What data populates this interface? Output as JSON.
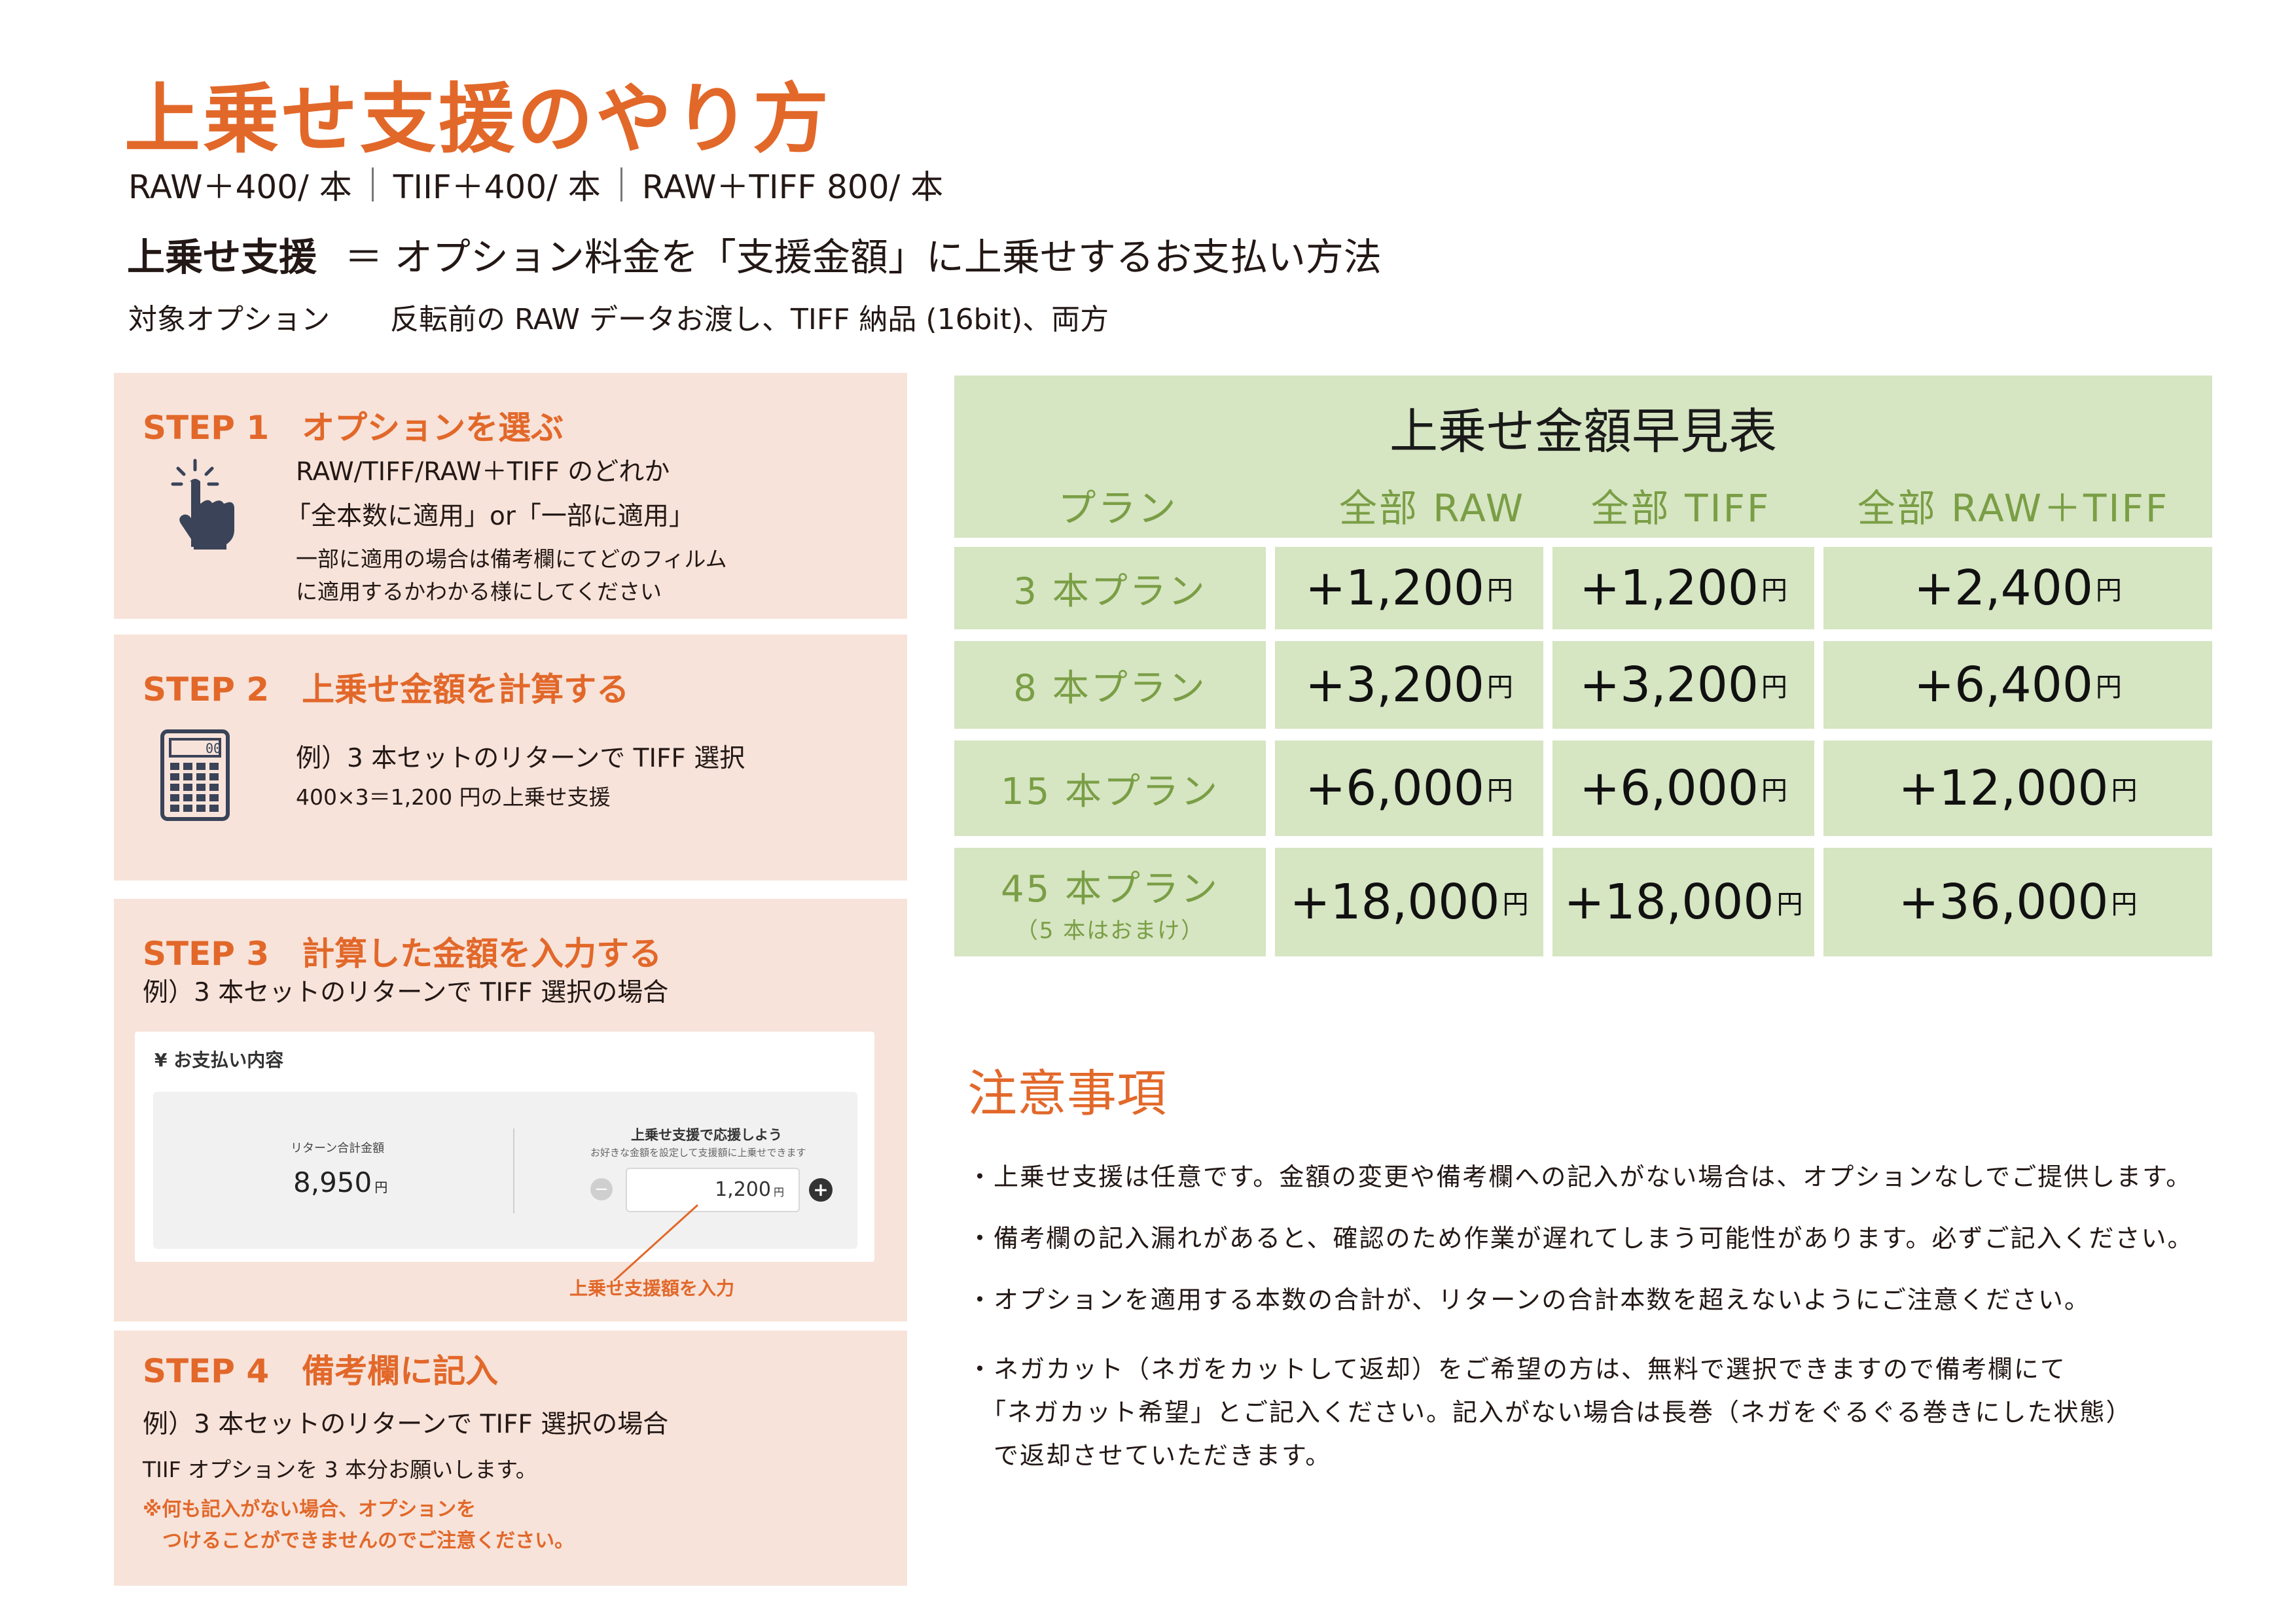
{
  "header": {
    "title": "上乗せ支援のやり方",
    "prices": [
      "RAW＋400/ 本",
      "TIIF＋400/ 本",
      "RAW＋TIFF 800/ 本"
    ],
    "definition_term": "上乗せ支援",
    "definition_body": "＝ オプション料金を「支援金額」に上乗せするお支払い方法",
    "target_label": "対象オプション",
    "target_body": "反転前の RAW データお渡し、TIFF 納品 (16bit)、両方"
  },
  "steps": {
    "s1": {
      "title": "STEP 1　オプションを選ぶ",
      "line1": "RAW/TIFF/RAW＋TIFF のどれか",
      "line2": "「全本数に適用」or「一部に適用」",
      "line3": "一部に適用の場合は備考欄にてどのフィルム",
      "line4": "に適用するかわかる様にしてください",
      "icon": "hand-pointer-icon"
    },
    "s2": {
      "title": "STEP 2　上乗せ金額を計算する",
      "line1": "例）3 本セットのリターンで TIFF 選択",
      "line2": "400×3＝1,200 円の上乗せ支援",
      "icon": "calculator-icon",
      "calc_display": "00"
    },
    "s3": {
      "title": "STEP 3　計算した金額を入力する",
      "line1": "例）3 本セットのリターンで TIFF 選択の場合",
      "pay_header": "¥ お支払い内容",
      "return_total_label": "リターン合計金額",
      "return_total_value": "8,950",
      "yen": "円",
      "support_title": "上乗せ支援で応援しよう",
      "support_sub": "お好きな金額を設定して支援額に上乗せできます",
      "support_value": "1,200",
      "minus": "−",
      "plus": "+",
      "callout": "上乗せ支援額を入力"
    },
    "s4": {
      "title": "STEP 4　備考欄に記入",
      "line1": "例）3 本セットのリターンで TIFF 選択の場合",
      "line2": "TIIF オプションを 3 本分お願いします。",
      "note1": "※何も記入がない場合、オプションを",
      "note2": "　つけることができませんのでご注意ください。"
    }
  },
  "table": {
    "title": "上乗せ金額早見表",
    "headers": [
      "プラン",
      "全部 RAW",
      "全部 TIFF",
      "全部 RAW＋TIFF"
    ],
    "yen": "円",
    "rows": [
      {
        "plan": "3 本プラン",
        "sub": "",
        "values": [
          "+1,200",
          "+1,200",
          "+2,400"
        ]
      },
      {
        "plan": "8 本プラン",
        "sub": "",
        "values": [
          "+3,200",
          "+3,200",
          "+6,400"
        ]
      },
      {
        "plan": "15 本プラン",
        "sub": "",
        "values": [
          "+6,000",
          "+6,000",
          "+12,000"
        ]
      },
      {
        "plan": "45 本プラン",
        "sub": "（5 本はおまけ）",
        "values": [
          "+18,000",
          "+18,000",
          "+36,000"
        ]
      }
    ]
  },
  "notes": {
    "title": "注意事項",
    "items": [
      "・上乗せ支援は任意です。金額の変更や備考欄への記入がない場合は、オプションなしでご提供します。",
      "・備考欄の記入漏れがあると、確認のため作業が遅れてしまう可能性があります。必ずご記入ください。",
      "・オプションを適用する本数の合計が、リターンの合計本数を超えないようにご注意ください。",
      "・ネガカット（ネガをカットして返却）をご希望の方は、無料で選択できますので備考欄にて",
      "　「ネガカット希望」とご記入ください。記入がない場合は長巻（ネガをぐるぐる巻きにした状態）",
      "　で返却させていただきます。"
    ]
  },
  "colors": {
    "accent": "#e2682a",
    "step_bg": "#f7e3da",
    "table_bg": "#d6e5c2",
    "plan_text": "#7a9e45"
  }
}
